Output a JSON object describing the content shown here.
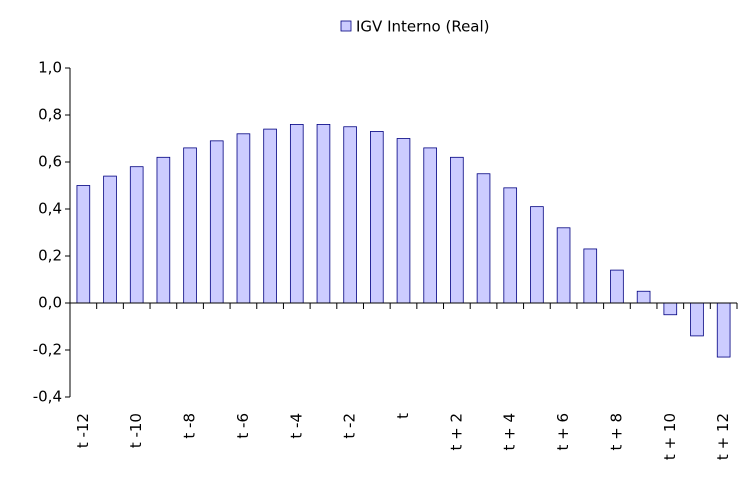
{
  "chart_data": {
    "type": "bar",
    "categories": [
      "t -12",
      null,
      "t -10",
      null,
      "t -8",
      null,
      "t -6",
      null,
      "t -4",
      null,
      "t -2",
      null,
      "t",
      null,
      "t + 2",
      null,
      "t + 4",
      null,
      "t + 6",
      null,
      "t + 8",
      null,
      "t + 10",
      null,
      "t + 12"
    ],
    "series": [
      {
        "name": "IGV Interno (Real)",
        "color": "#ccccff",
        "values": [
          0.5,
          0.54,
          0.58,
          0.62,
          0.66,
          0.69,
          0.72,
          0.74,
          0.76,
          0.76,
          0.75,
          0.73,
          0.7,
          0.66,
          0.62,
          0.55,
          0.49,
          0.41,
          0.32,
          0.23,
          0.14,
          0.05,
          -0.05,
          -0.14,
          -0.23
        ]
      }
    ],
    "ylim": [
      -0.4,
      1.0
    ],
    "yticks": [
      {
        "value": -0.4,
        "label": "-0,4"
      },
      {
        "value": -0.2,
        "label": "-0,2"
      },
      {
        "value": 0,
        "label": "0,0"
      },
      {
        "value": 0.2,
        "label": "0,2"
      },
      {
        "value": 0.4,
        "label": "0,4"
      },
      {
        "value": 0.6,
        "label": "0,6"
      },
      {
        "value": 0.8,
        "label": "0,8"
      },
      {
        "value": 1.0,
        "label": "1,0"
      }
    ],
    "legend": "top"
  }
}
